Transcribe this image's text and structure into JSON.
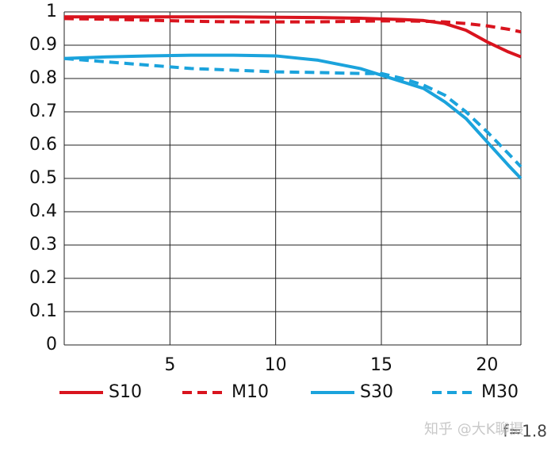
{
  "chart_data": {
    "type": "line",
    "x": [
      0,
      2,
      4,
      6,
      8,
      10,
      12,
      14,
      15,
      16,
      17,
      18,
      19,
      20,
      21,
      21.6
    ],
    "series": [
      {
        "name": "S10",
        "color": "#d9141e",
        "dashed": false,
        "values": [
          0.985,
          0.985,
          0.985,
          0.985,
          0.985,
          0.984,
          0.983,
          0.981,
          0.979,
          0.977,
          0.974,
          0.965,
          0.945,
          0.91,
          0.88,
          0.865
        ]
      },
      {
        "name": "M10",
        "color": "#d9141e",
        "dashed": true,
        "values": [
          0.98,
          0.978,
          0.975,
          0.972,
          0.97,
          0.97,
          0.97,
          0.972,
          0.973,
          0.973,
          0.972,
          0.97,
          0.965,
          0.958,
          0.948,
          0.94
        ]
      },
      {
        "name": "S30",
        "color": "#1ba3dc",
        "dashed": false,
        "values": [
          0.86,
          0.865,
          0.868,
          0.87,
          0.87,
          0.868,
          0.855,
          0.83,
          0.81,
          0.79,
          0.77,
          0.73,
          0.68,
          0.61,
          0.54,
          0.5
        ]
      },
      {
        "name": "M30",
        "color": "#1ba3dc",
        "dashed": true,
        "values": [
          0.86,
          0.85,
          0.84,
          0.83,
          0.825,
          0.82,
          0.818,
          0.815,
          0.815,
          0.8,
          0.78,
          0.75,
          0.7,
          0.64,
          0.575,
          0.535
        ]
      }
    ],
    "xlim": [
      0,
      21.6
    ],
    "ylim": [
      0,
      1
    ],
    "xticks": [
      5,
      10,
      15,
      20
    ],
    "yticks": [
      0,
      0.1,
      0.2,
      0.3,
      0.4,
      0.5,
      0.6,
      0.7,
      0.8,
      0.9,
      1
    ],
    "grid": true,
    "legend": "bottom",
    "annotation": "f=1.8",
    "watermark": "知乎 @大K聊摄"
  }
}
